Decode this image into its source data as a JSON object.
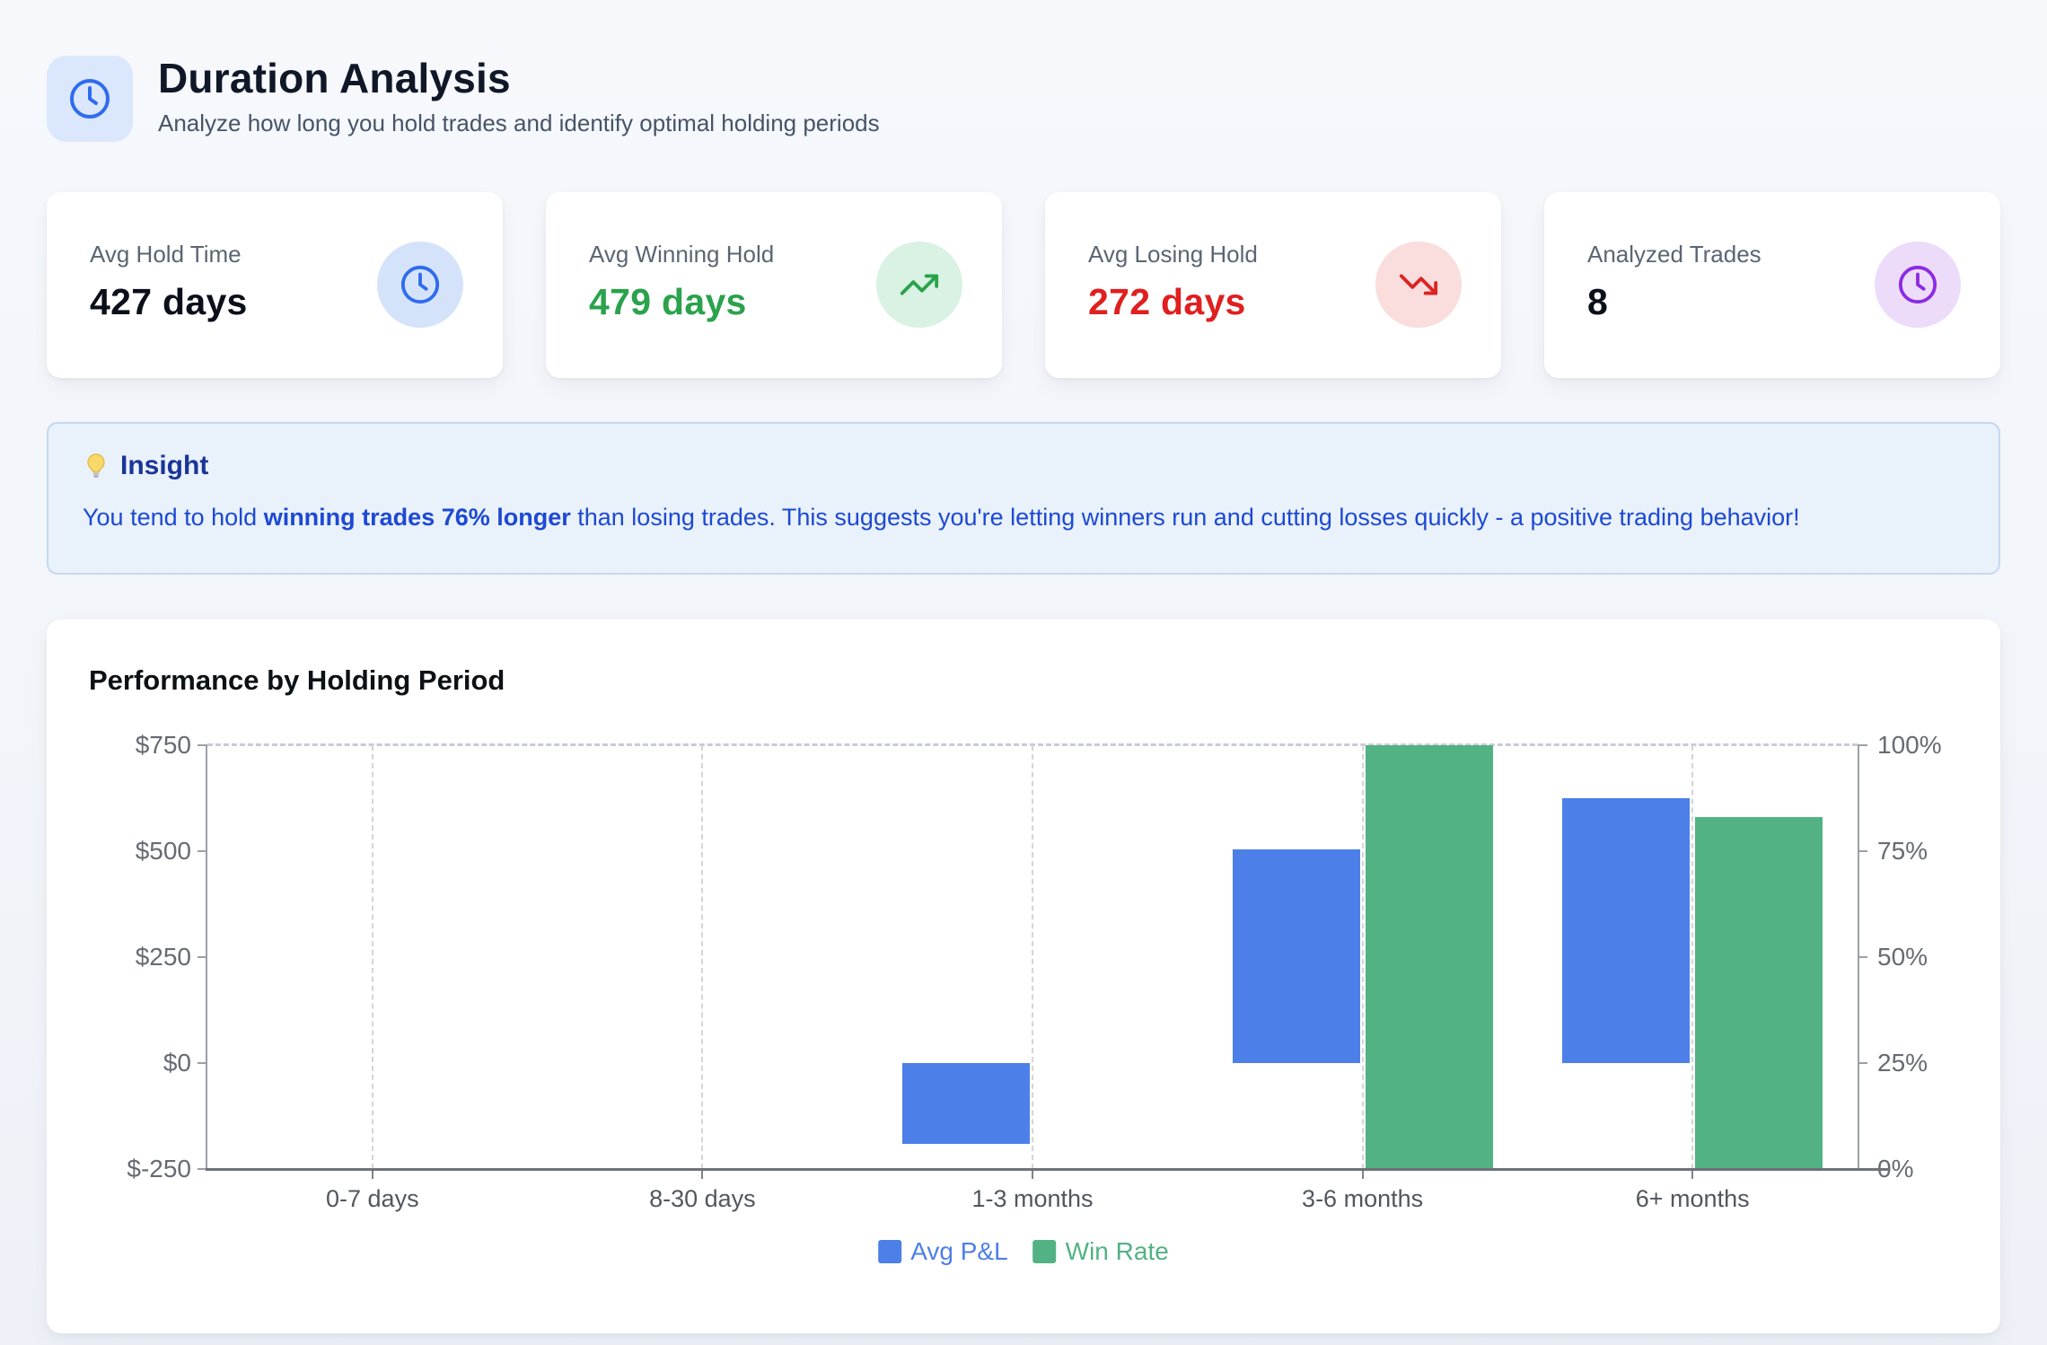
{
  "header": {
    "title": "Duration Analysis",
    "subtitle": "Analyze how long you hold trades and identify optimal holding periods",
    "icon": "clock-icon",
    "icon_color": "#2f6bef",
    "icon_bg": "#dbe7fd"
  },
  "stats": [
    {
      "label": "Avg Hold Time",
      "value": "427 days",
      "icon": "clock-icon",
      "icon_color": "#2f6bef",
      "icon_bg": "#d5e3fa",
      "value_color": "#0b0f19"
    },
    {
      "label": "Avg Winning Hold",
      "value": "479 days",
      "icon": "trending-up-icon",
      "icon_color": "#2ba24c",
      "icon_bg": "#d9f2e4",
      "value_color": "#2ba24c"
    },
    {
      "label": "Avg Losing Hold",
      "value": "272 days",
      "icon": "trending-down-icon",
      "icon_color": "#dc2323",
      "icon_bg": "#fadddd",
      "value_color": "#e01f1f"
    },
    {
      "label": "Analyzed Trades",
      "value": "8",
      "icon": "clock-icon",
      "icon_color": "#8d2be3",
      "icon_bg": "#ecdcfa",
      "value_color": "#0b0f19"
    }
  ],
  "insight": {
    "icon": "lightbulb-icon",
    "title": "Insight",
    "text_prefix": "You tend to hold ",
    "text_bold": "winning trades 76% longer",
    "text_suffix": " than losing trades. This suggests you're letting winners run and cutting losses quickly - a positive trading behavior!",
    "bg": "#e9f1fb",
    "border": "#c3d9f0",
    "title_color": "#1a3597",
    "text_color": "#1d49d3"
  },
  "chart_data": {
    "type": "bar",
    "title": "Performance by Holding Period",
    "categories": [
      "0-7 days",
      "8-30 days",
      "1-3 months",
      "3-6 months",
      "6+ months"
    ],
    "series": [
      {
        "name": "Avg P&L",
        "axis": "left",
        "color": "#4d7fe8",
        "values": [
          0,
          0,
          -190,
          505,
          625
        ]
      },
      {
        "name": "Win Rate",
        "axis": "right",
        "color": "#52b283",
        "values": [
          0,
          0,
          0,
          100,
          83
        ]
      }
    ],
    "left_axis": {
      "min": -250,
      "max": 750,
      "ticks": [
        750,
        500,
        250,
        0,
        -250
      ],
      "tick_labels": [
        "$750",
        "$500",
        "$250",
        "$0",
        "$-250"
      ]
    },
    "right_axis": {
      "min": 0,
      "max": 100,
      "ticks": [
        100,
        75,
        50,
        25,
        0
      ],
      "tick_labels": [
        "100%",
        "75%",
        "50%",
        "25%",
        "0%"
      ]
    },
    "legend": [
      {
        "label": "Avg P&L",
        "color": "#4d7fe8"
      },
      {
        "label": "Win Rate",
        "color": "#52b283"
      }
    ],
    "legend_position": "bottom",
    "grid": "vertical-dashed"
  }
}
